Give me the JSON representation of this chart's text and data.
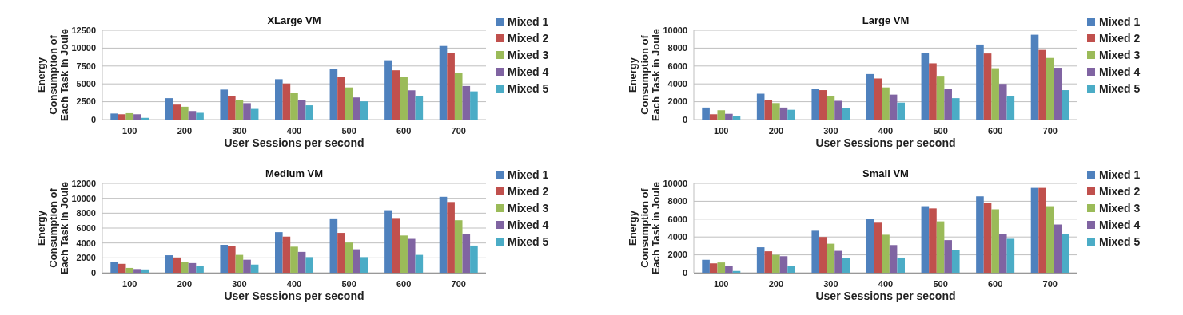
{
  "chart_data": [
    {
      "type": "bar",
      "title": "XLarge VM",
      "xlabel": "User Sessions per second",
      "ylabel": "Energy\nConsumption of\nEach Task in Joule",
      "categories": [
        "100",
        "200",
        "300",
        "400",
        "500",
        "600",
        "700"
      ],
      "ylim": [
        0,
        12500
      ],
      "yticks": [
        0,
        2500,
        5000,
        7500,
        10000,
        12500
      ],
      "grid": "y",
      "legend": "right",
      "series": [
        {
          "name": "Mixed 1",
          "color": "#4f81bd",
          "values": [
            850,
            3000,
            4200,
            5650,
            7050,
            8300,
            10300
          ]
        },
        {
          "name": "Mixed 2",
          "color": "#c0504d",
          "values": [
            750,
            2100,
            3250,
            5050,
            5950,
            6900,
            9350
          ]
        },
        {
          "name": "Mixed 3",
          "color": "#9bbb59",
          "values": [
            900,
            1800,
            2700,
            3700,
            4500,
            6000,
            6550
          ]
        },
        {
          "name": "Mixed 4",
          "color": "#8064a2",
          "values": [
            750,
            1200,
            2300,
            2750,
            3100,
            4100,
            4700
          ]
        },
        {
          "name": "Mixed 5",
          "color": "#4bacc6",
          "values": [
            250,
            950,
            1500,
            2000,
            2550,
            3350,
            3950
          ]
        }
      ]
    },
    {
      "type": "bar",
      "title": "Large VM",
      "xlabel": "User Sessions per second",
      "ylabel": "Energy\nConsumption of\nEach Task in Joule",
      "categories": [
        "100",
        "200",
        "300",
        "400",
        "500",
        "600",
        "700"
      ],
      "ylim": [
        0,
        10000
      ],
      "yticks": [
        0,
        2000,
        4000,
        6000,
        8000,
        10000
      ],
      "grid": "y",
      "legend": "right",
      "series": [
        {
          "name": "Mixed 1",
          "color": "#4f81bd",
          "values": [
            1350,
            2900,
            3400,
            5100,
            7500,
            8400,
            9500
          ]
        },
        {
          "name": "Mixed 2",
          "color": "#c0504d",
          "values": [
            600,
            2200,
            3300,
            4600,
            6300,
            7400,
            7800
          ]
        },
        {
          "name": "Mixed 3",
          "color": "#9bbb59",
          "values": [
            1050,
            1850,
            2650,
            3600,
            4900,
            5750,
            6900
          ]
        },
        {
          "name": "Mixed 4",
          "color": "#8064a2",
          "values": [
            650,
            1350,
            2100,
            2800,
            3400,
            4000,
            5800
          ]
        },
        {
          "name": "Mixed 5",
          "color": "#4bacc6",
          "values": [
            400,
            1100,
            1250,
            1900,
            2400,
            2650,
            3300
          ]
        }
      ]
    },
    {
      "type": "bar",
      "title": "Medium VM",
      "xlabel": "User Sessions per second",
      "ylabel": "Energy\nConsumption of\nEach Task in Joule",
      "categories": [
        "100",
        "200",
        "300",
        "400",
        "500",
        "600",
        "700"
      ],
      "ylim": [
        0,
        12000
      ],
      "yticks": [
        0,
        2000,
        4000,
        6000,
        8000,
        10000,
        12000
      ],
      "grid": "y",
      "legend": "right",
      "series": [
        {
          "name": "Mixed 1",
          "color": "#4f81bd",
          "values": [
            1400,
            2350,
            3750,
            5450,
            7300,
            8400,
            10200
          ]
        },
        {
          "name": "Mixed 2",
          "color": "#c0504d",
          "values": [
            1200,
            2050,
            3600,
            4850,
            5350,
            7350,
            9500
          ]
        },
        {
          "name": "Mixed 3",
          "color": "#9bbb59",
          "values": [
            650,
            1450,
            2400,
            3500,
            4050,
            5000,
            7050
          ]
        },
        {
          "name": "Mixed 4",
          "color": "#8064a2",
          "values": [
            500,
            1300,
            1750,
            2800,
            3150,
            4550,
            5250
          ]
        },
        {
          "name": "Mixed 5",
          "color": "#4bacc6",
          "values": [
            450,
            950,
            1100,
            2100,
            2100,
            2400,
            3650
          ]
        }
      ]
    },
    {
      "type": "bar",
      "title": "Small VM",
      "xlabel": "User Sessions per second",
      "ylabel": "Energy\nConsumption of\nEach Task in Joule",
      "categories": [
        "100",
        "200",
        "300",
        "400",
        "500",
        "600",
        "700"
      ],
      "ylim": [
        0,
        10000
      ],
      "yticks": [
        0,
        2000,
        4000,
        6000,
        8000,
        10000
      ],
      "grid": "y",
      "legend": "right",
      "series": [
        {
          "name": "Mixed 1",
          "color": "#4f81bd",
          "values": [
            1450,
            2850,
            4700,
            6000,
            7450,
            8550,
            9500
          ]
        },
        {
          "name": "Mixed 2",
          "color": "#c0504d",
          "values": [
            1050,
            2400,
            4000,
            5600,
            7200,
            7800,
            9500
          ]
        },
        {
          "name": "Mixed 3",
          "color": "#9bbb59",
          "values": [
            1150,
            2000,
            3250,
            4250,
            5750,
            7100,
            7450
          ]
        },
        {
          "name": "Mixed 4",
          "color": "#8064a2",
          "values": [
            800,
            1850,
            2450,
            3100,
            3650,
            4300,
            5400
          ]
        },
        {
          "name": "Mixed 5",
          "color": "#4bacc6",
          "values": [
            200,
            750,
            1650,
            1700,
            2500,
            3800,
            4300
          ]
        }
      ]
    }
  ]
}
